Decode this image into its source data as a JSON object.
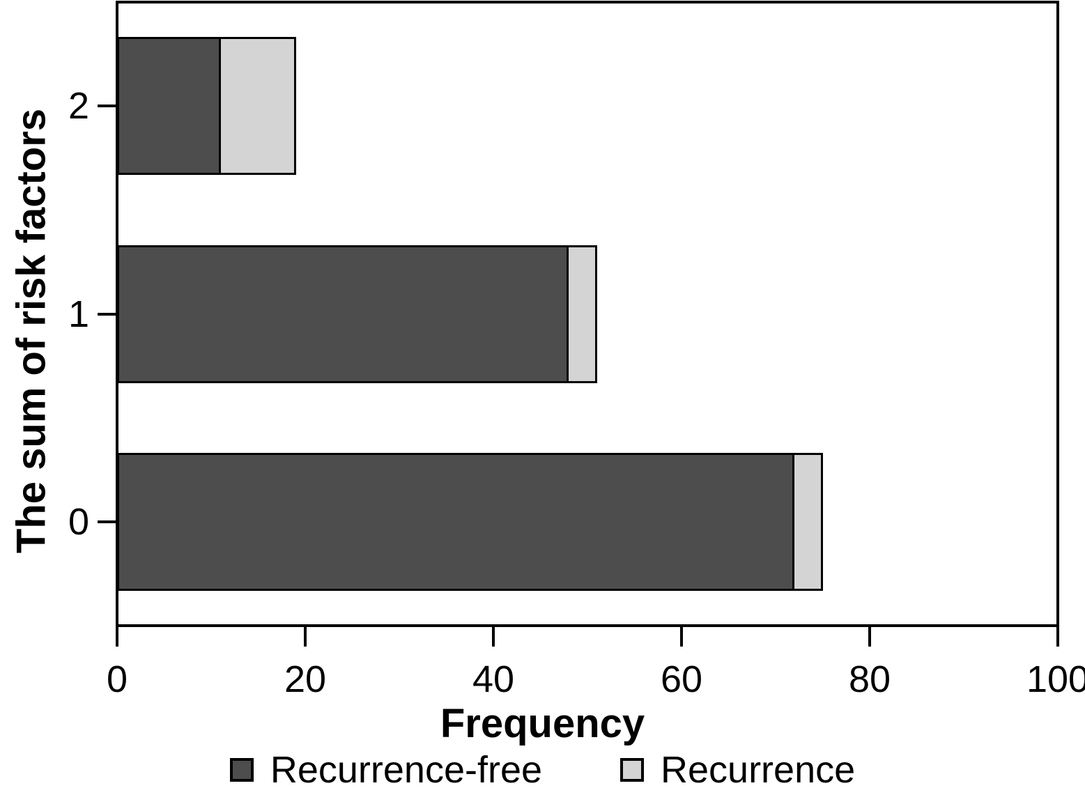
{
  "chart_data": {
    "type": "bar",
    "orientation": "horizontal",
    "stacked": true,
    "title": "",
    "xlabel": "Frequency",
    "ylabel": "The sum of risk factors",
    "xlim": [
      0,
      100
    ],
    "x_ticks": [
      0,
      20,
      40,
      60,
      80,
      100
    ],
    "categories": [
      "2",
      "1",
      "0"
    ],
    "series": [
      {
        "name": "Recurrence-free",
        "color": "#4d4d4d",
        "values": [
          11,
          48,
          72
        ]
      },
      {
        "name": "Recurrence",
        "color": "#d4d4d4",
        "values": [
          8,
          3,
          3
        ]
      }
    ],
    "grid": false,
    "legend_position": "bottom"
  },
  "colors": {
    "bar_border": "#000000",
    "axis": "#000000",
    "background": "#ffffff"
  }
}
